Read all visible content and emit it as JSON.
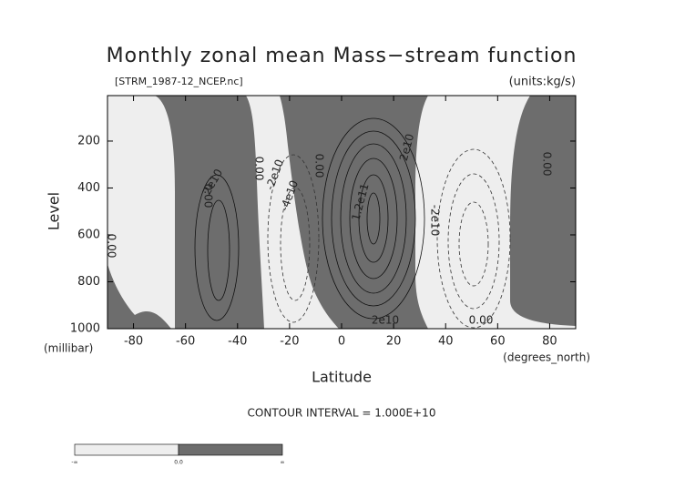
{
  "chart_data": {
    "type": "contour",
    "title": "Monthly zonal mean Mass−stream function",
    "subtitle": "[STRM_1987-12_NCEP.nc]",
    "units_label": "(units:kg/s)",
    "xlabel": "Latitude",
    "xunits": "(degrees_north)",
    "ylabel": "Level",
    "yunits": "(millibar)",
    "xlim": [
      -90,
      90
    ],
    "xticks": [
      -80,
      -60,
      -40,
      -20,
      0,
      20,
      40,
      60,
      80
    ],
    "ylim": [
      1000,
      6
    ],
    "yticks": [
      200,
      400,
      600,
      800,
      1000
    ],
    "contour_interval_label": "CONTOUR INTERVAL = 1.000E+10",
    "colorbar_labels": [
      "-∞",
      "0.0",
      "∞"
    ],
    "contour_labels": [
      "0.00",
      "0.00",
      "2e10",
      "-2e10",
      "-4e10",
      "0.00",
      "1.2e11",
      "2e10",
      "-2e10",
      "0.00",
      "0.00",
      "2e10",
      "0.00"
    ]
  }
}
